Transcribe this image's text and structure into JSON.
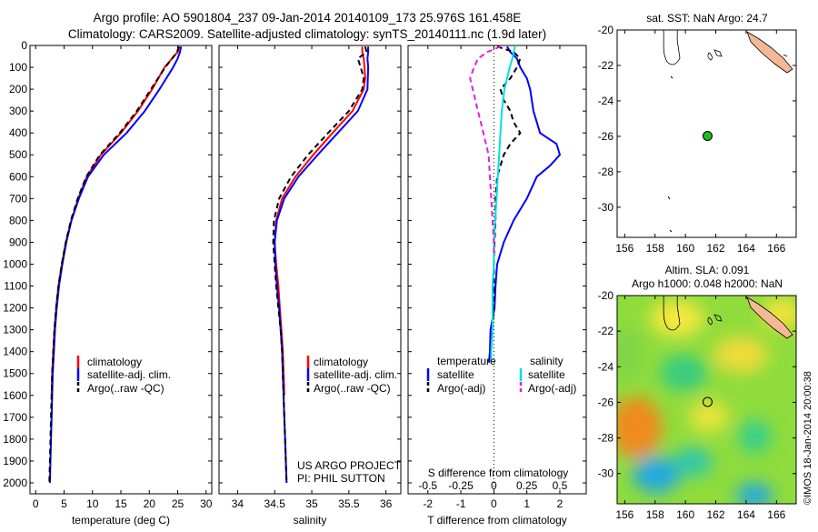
{
  "header": {
    "line1": "Argo profile: AO 5901804_237 09-Jan-2014 20140109_173 25.976S 161.458E",
    "line2": "Climatology: CARS2009. Satellite-adjusted climatology: synTS_20140111.nc (1.9d later)"
  },
  "credit": {
    "project": "US ARGO PROJECT",
    "pi": "PI: PHIL SUTTON"
  },
  "watermark": "©IMOS 18-Jan-2014 20:00:38",
  "colors": {
    "climatology": "#ff0000",
    "satellite": "#0000ff",
    "argo": "#000000",
    "sat_salinity": "#00e0e0",
    "argo_salinity": "#e020e0",
    "float": "#22bb22",
    "land": "#f5b896"
  },
  "chart_data": [
    {
      "id": "temperature",
      "type": "line",
      "xlabel": "temperature (deg C)",
      "ylabel": "",
      "xlim": [
        -1,
        31
      ],
      "ylim": [
        2050,
        0
      ],
      "xticks": [
        0,
        5,
        10,
        15,
        20,
        25,
        30
      ],
      "yticks": [
        0,
        100,
        200,
        300,
        400,
        500,
        600,
        700,
        800,
        900,
        1000,
        1100,
        1200,
        1300,
        1400,
        1500,
        1600,
        1700,
        1800,
        1900,
        2000
      ],
      "legend": [
        "climatology",
        "satellite-adj. clim.",
        "Argo(..raw -QC)"
      ],
      "series": [
        {
          "name": "climatology",
          "depth": [
            5,
            30,
            60,
            100,
            200,
            300,
            400,
            500,
            600,
            700,
            800,
            900,
            1000,
            1100,
            1200,
            1300,
            1400,
            1500,
            1600
          ],
          "values": [
            25.3,
            25.0,
            24.0,
            22.7,
            20.5,
            18.0,
            15.0,
            11.5,
            9.0,
            7.5,
            6.3,
            5.3,
            4.6,
            4.0,
            3.6,
            3.3,
            3.1,
            2.9,
            2.8
          ]
        },
        {
          "name": "satellite-adj. clim.",
          "depth": [
            5,
            30,
            60,
            100,
            200,
            300,
            400,
            500,
            600,
            700,
            800,
            900,
            1000,
            1100,
            1200,
            1300,
            1400,
            1500,
            1600,
            1700,
            1800,
            1900,
            2000
          ],
          "values": [
            25.6,
            25.4,
            25.0,
            24.2,
            21.8,
            19.2,
            16.0,
            12.0,
            9.2,
            7.6,
            6.3,
            5.4,
            4.7,
            4.1,
            3.7,
            3.4,
            3.2,
            3.0,
            2.9,
            2.8,
            2.7,
            2.6,
            2.5
          ]
        },
        {
          "name": "Argo(..raw -QC)",
          "depth": [
            5,
            30,
            60,
            100,
            200,
            300,
            400,
            500,
            600,
            700,
            800,
            900,
            1000,
            1100,
            1200,
            1300,
            1400,
            1500,
            1600,
            1700,
            1800,
            1900,
            2000
          ],
          "values": [
            25.2,
            24.9,
            24.0,
            22.8,
            20.3,
            17.8,
            14.8,
            11.3,
            8.9,
            7.4,
            6.2,
            5.3,
            4.6,
            4.0,
            3.6,
            3.3,
            3.1,
            2.9,
            2.8,
            2.7,
            2.6,
            2.5,
            2.4
          ]
        }
      ]
    },
    {
      "id": "salinity",
      "type": "line",
      "xlabel": "salinity",
      "ylabel": "",
      "xlim": [
        33.75,
        36.2
      ],
      "ylim": [
        2050,
        0
      ],
      "xticks": [
        34,
        34.5,
        35,
        35.5,
        36
      ],
      "legend": [
        "climatology",
        "satellite-adj. clim.",
        "Argo(..raw -QC)"
      ],
      "series": [
        {
          "name": "climatology",
          "depth": [
            5,
            30,
            60,
            100,
            150,
            200,
            300,
            400,
            500,
            600,
            700,
            800,
            900,
            1000,
            1100,
            1200,
            1300,
            1400,
            1500,
            1600
          ],
          "values": [
            35.68,
            35.68,
            35.7,
            35.71,
            35.72,
            35.7,
            35.55,
            35.28,
            35.02,
            34.78,
            34.6,
            34.52,
            34.5,
            34.52,
            34.55,
            34.57,
            34.59,
            34.61,
            34.62,
            34.63
          ]
        },
        {
          "name": "satellite-adj. clim.",
          "depth": [
            5,
            30,
            60,
            100,
            200,
            300,
            400,
            500,
            600,
            700,
            800,
            900,
            1000,
            1100,
            1200,
            1300,
            1400,
            1500,
            1600,
            1700,
            1800,
            1900,
            2000
          ],
          "values": [
            35.76,
            35.76,
            35.75,
            35.76,
            35.75,
            35.62,
            35.35,
            35.08,
            34.82,
            34.63,
            34.53,
            34.5,
            34.51,
            34.53,
            34.56,
            34.58,
            34.6,
            34.61,
            34.62,
            34.63,
            34.64,
            34.65,
            34.66
          ]
        },
        {
          "name": "Argo(..raw -QC)",
          "depth": [
            5,
            30,
            60,
            100,
            150,
            200,
            300,
            400,
            500,
            600,
            700,
            800,
            900,
            1000,
            1100,
            1200,
            1300,
            1400,
            1500,
            1600,
            1700,
            1800,
            1900,
            2000
          ],
          "values": [
            35.72,
            35.74,
            35.62,
            35.66,
            35.7,
            35.68,
            35.5,
            35.22,
            34.95,
            34.72,
            34.56,
            34.49,
            34.48,
            34.5,
            34.52,
            34.55,
            34.58,
            34.6,
            34.61,
            34.62,
            34.63,
            34.64,
            34.65,
            34.66
          ]
        }
      ]
    },
    {
      "id": "differences",
      "type": "line",
      "xlabel": "T difference from climatology",
      "xlabel_top": "S difference from climatology",
      "xlim": [
        -2.6,
        2.8
      ],
      "ylim": [
        2050,
        0
      ],
      "xticks": [
        -2,
        -1,
        0,
        1,
        2
      ],
      "xticks_s": [
        -0.5,
        -0.25,
        0,
        0.25,
        0.5
      ],
      "legend_titles": [
        "temperature",
        "salinity"
      ],
      "legend": [
        "satellite",
        "Argo(-adj)",
        "satellite",
        "Argo(-adj)"
      ],
      "series": [
        {
          "name": "temperature satellite",
          "depth": [
            5,
            30,
            60,
            100,
            150,
            200,
            300,
            400,
            450,
            500,
            550,
            600,
            700,
            800,
            900,
            1000,
            1100,
            1200,
            1300,
            1400,
            1450
          ],
          "values": [
            0.4,
            0.5,
            0.7,
            0.8,
            1.0,
            1.1,
            1.2,
            1.4,
            1.9,
            2.0,
            1.7,
            1.3,
            1.0,
            0.6,
            0.3,
            0.1,
            0.05,
            0.02,
            -0.1,
            -0.12,
            -0.15
          ]
        },
        {
          "name": "temperature Argo(-adj)",
          "depth": [
            5,
            30,
            60,
            100,
            150,
            200,
            250,
            300,
            350,
            400,
            450,
            500,
            550,
            600,
            700,
            800,
            900,
            1000,
            1100,
            1200,
            1300,
            1400,
            1450
          ],
          "values": [
            0.1,
            0.6,
            0.8,
            0.7,
            0.5,
            0.2,
            0.3,
            0.5,
            0.6,
            0.8,
            0.5,
            0.3,
            0.2,
            0.1,
            0.05,
            0.05,
            0.02,
            0.0,
            0.0,
            0.0,
            -0.05,
            -0.08,
            -0.08
          ]
        },
        {
          "name": "salinity satellite",
          "depth": [
            5,
            30,
            60,
            100,
            150,
            200,
            300,
            400,
            500,
            600,
            700,
            800,
            900,
            1000,
            1100,
            1200,
            1300,
            1400,
            1450
          ],
          "values": [
            0.16,
            0.15,
            0.14,
            0.12,
            0.1,
            0.08,
            0.06,
            0.05,
            0.04,
            0.03,
            0.02,
            0.01,
            0.0,
            0.0,
            -0.01,
            -0.01,
            -0.01,
            -0.02,
            -0.02
          ]
        },
        {
          "name": "salinity Argo(-adj)",
          "depth": [
            5,
            30,
            60,
            100,
            150,
            200,
            250,
            300,
            350,
            400,
            450,
            500,
            600,
            700,
            800,
            900,
            950
          ],
          "values": [
            0.05,
            -0.05,
            -0.12,
            -0.15,
            -0.18,
            -0.16,
            -0.14,
            -0.12,
            -0.1,
            -0.08,
            -0.06,
            -0.04,
            -0.03,
            -0.02,
            -0.01,
            0.0,
            0.0
          ]
        }
      ]
    }
  ],
  "maps": {
    "sst": {
      "title": "sat. SST: NaN Argo: 24.7",
      "xticks": [
        156,
        158,
        160,
        162,
        164,
        166
      ],
      "yticks": [
        -20,
        -22,
        -24,
        -26,
        -28,
        -30
      ],
      "lon_range": [
        155.5,
        167.3
      ],
      "lat_range": [
        -31.7,
        -20
      ],
      "float_lon": 161.458,
      "float_lat": -25.976
    },
    "sla": {
      "title1": "Altim. SLA: 0.091",
      "title2": "Argo h1000: 0.048 h2000: NaN",
      "xticks": [
        156,
        158,
        160,
        162,
        164,
        166
      ],
      "yticks": [
        -20,
        -22,
        -24,
        -26,
        -28,
        -30
      ],
      "lon_range": [
        155.5,
        167.3
      ],
      "lat_range": [
        -31.7,
        -20
      ],
      "float_lon": 161.458,
      "float_lat": -25.976
    }
  }
}
